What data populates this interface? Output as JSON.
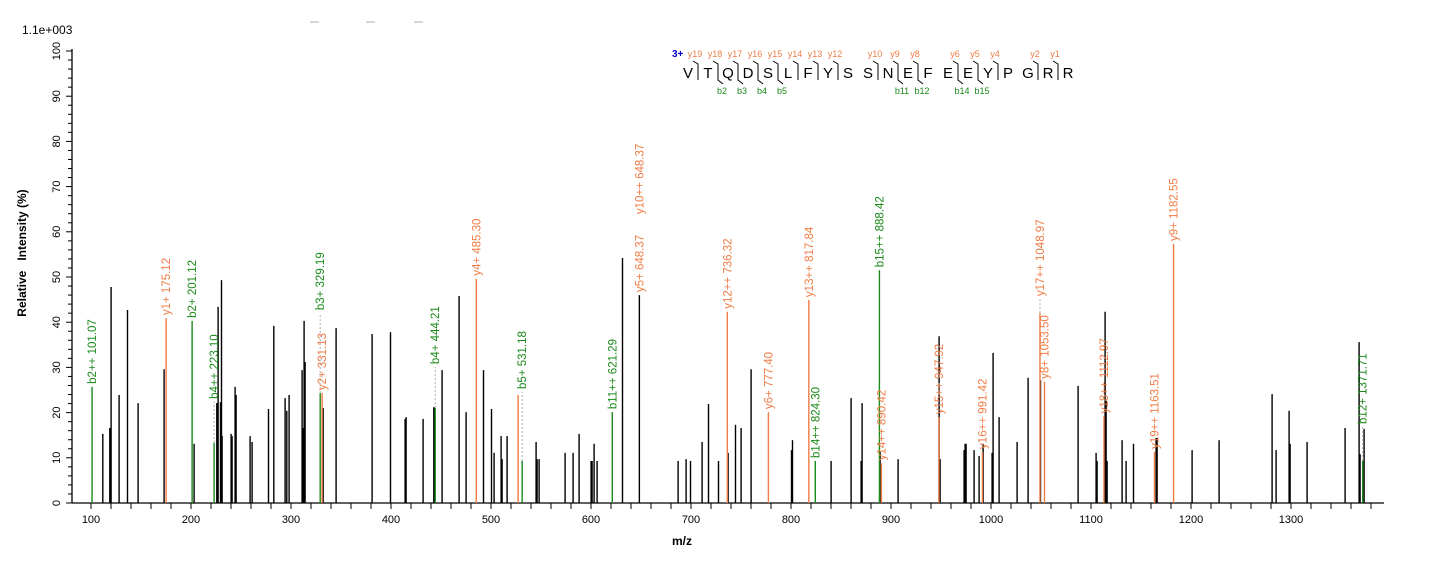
{
  "chart_data": {
    "type": "bar",
    "title": "",
    "scale_label": "1.1e+003",
    "xlabel": "m/z",
    "ylabel": "Relative   Intensity (%)",
    "xlim": [
      81,
      1393
    ],
    "ylim": [
      0,
      100
    ],
    "x_ticks": [
      100,
      200,
      300,
      400,
      500,
      600,
      700,
      800,
      900,
      1000,
      1100,
      1200,
      1300
    ],
    "y_ticks": [
      0,
      10,
      20,
      30,
      40,
      50,
      60,
      70,
      80,
      90,
      100
    ],
    "grid": false,
    "colors": {
      "unassigned": "#000000",
      "b_ion": "#1a8a1a",
      "y_ion": "#f07c45",
      "charge": "#0000cc",
      "connector": "#aaaaaa"
    },
    "peptide": {
      "charge": "3+",
      "sequence": [
        "V",
        "T",
        "Q",
        "D",
        "S",
        "L",
        "F",
        "Y",
        "S",
        "S",
        "N",
        "E",
        "F",
        "E",
        "E",
        "Y",
        "P",
        "G",
        "R",
        "R"
      ],
      "y_cleavages": [
        {
          "after": 1,
          "label": "y19"
        },
        {
          "after": 2,
          "label": "y18"
        },
        {
          "after": 3,
          "label": "y17"
        },
        {
          "after": 4,
          "label": "y16"
        },
        {
          "after": 5,
          "label": "y15"
        },
        {
          "after": 6,
          "label": "y14"
        },
        {
          "after": 7,
          "label": "y13"
        },
        {
          "after": 8,
          "label": "y12"
        },
        {
          "after": 10,
          "label": "y10"
        },
        {
          "after": 11,
          "label": "y9"
        },
        {
          "after": 12,
          "label": "y8"
        },
        {
          "after": 14,
          "label": "y6"
        },
        {
          "after": 15,
          "label": "y5"
        },
        {
          "after": 16,
          "label": "y4"
        },
        {
          "after": 18,
          "label": "y2"
        },
        {
          "after": 19,
          "label": "y1"
        }
      ],
      "b_cleavages": [
        {
          "after": 2,
          "label": "b2"
        },
        {
          "after": 3,
          "label": "b3"
        },
        {
          "after": 4,
          "label": "b4"
        },
        {
          "after": 5,
          "label": "b5"
        },
        {
          "after": 11,
          "label": "b11"
        },
        {
          "after": 12,
          "label": "b12"
        },
        {
          "after": 14,
          "label": "b14"
        },
        {
          "after": 15,
          "label": "b15"
        }
      ]
    },
    "peaks": [
      [
        111.8,
        15.3
      ],
      [
        118.8,
        16.6
      ],
      [
        120.1,
        47.8
      ],
      [
        128.1,
        23.9
      ],
      [
        136.5,
        42.7
      ],
      [
        147.1,
        22.1
      ],
      [
        173.1,
        29.6
      ],
      [
        203.1,
        13.1
      ],
      [
        225.8,
        22.1
      ],
      [
        227.1,
        43.4
      ],
      [
        229.5,
        22.3
      ],
      [
        230.5,
        49.3
      ],
      [
        231.1,
        14.8
      ],
      [
        240.1,
        15.3
      ],
      [
        241.1,
        14.8
      ],
      [
        244.1,
        25.7
      ],
      [
        245.1,
        23.9
      ],
      [
        259.1,
        14.8
      ],
      [
        261.1,
        13.5
      ],
      [
        277.5,
        20.8
      ],
      [
        282.8,
        39.2
      ],
      [
        294.1,
        23.2
      ],
      [
        295.8,
        20.4
      ],
      [
        298.1,
        23.9
      ],
      [
        311.1,
        29.4
      ],
      [
        312.1,
        16.6
      ],
      [
        313.1,
        40.3
      ],
      [
        314.1,
        31.2
      ],
      [
        332.1,
        21.0
      ],
      [
        345.1,
        38.7
      ],
      [
        381.1,
        37.4
      ],
      [
        399.5,
        37.8
      ],
      [
        414.1,
        18.6
      ],
      [
        415.1,
        19.0
      ],
      [
        432.1,
        18.6
      ],
      [
        442.8,
        21.2
      ],
      [
        451.1,
        29.4
      ],
      [
        468.1,
        45.8
      ],
      [
        475.1,
        20.1
      ],
      [
        492.5,
        29.4
      ],
      [
        500.5,
        20.8
      ],
      [
        503.1,
        11.1
      ],
      [
        510.1,
        14.8
      ],
      [
        511.1,
        9.7
      ],
      [
        516.1,
        14.8
      ],
      [
        545.1,
        13.5
      ],
      [
        546.1,
        9.7
      ],
      [
        548.1,
        9.7
      ],
      [
        574.1,
        11.1
      ],
      [
        582.1,
        11.1
      ],
      [
        588.1,
        15.3
      ],
      [
        600.1,
        9.3
      ],
      [
        601.1,
        9.3
      ],
      [
        603.1,
        13.1
      ],
      [
        606.1,
        9.3
      ],
      [
        631.5,
        54.2
      ],
      [
        687.1,
        9.3
      ],
      [
        695.1,
        9.7
      ],
      [
        699.5,
        9.3
      ],
      [
        711.1,
        13.5
      ],
      [
        717.5,
        21.9
      ],
      [
        727.5,
        9.3
      ],
      [
        737.1,
        11.1
      ],
      [
        744.5,
        17.3
      ],
      [
        750.1,
        16.6
      ],
      [
        760.1,
        29.6
      ],
      [
        800.5,
        11.7
      ],
      [
        801.5,
        13.9
      ],
      [
        840.1,
        9.3
      ],
      [
        860.1,
        23.2
      ],
      [
        870.1,
        9.3
      ],
      [
        871.1,
        22.1
      ],
      [
        889.1,
        11.3
      ],
      [
        907.1,
        9.7
      ],
      [
        948.1,
        36.9
      ],
      [
        949.1,
        9.7
      ],
      [
        973.1,
        11.7
      ],
      [
        974.1,
        13.1
      ],
      [
        975.1,
        13.1
      ],
      [
        983.1,
        11.7
      ],
      [
        988.1,
        10.4
      ],
      [
        992.1,
        13.1
      ],
      [
        1001.1,
        11.1
      ],
      [
        1002.1,
        33.2
      ],
      [
        1008.1,
        19.0
      ],
      [
        1026.1,
        13.5
      ],
      [
        1037.1,
        27.7
      ],
      [
        1049.5,
        27.2
      ],
      [
        1087.1,
        25.9
      ],
      [
        1105.1,
        11.1
      ],
      [
        1106.1,
        9.3
      ],
      [
        1114.1,
        42.3
      ],
      [
        1115.1,
        22.6
      ],
      [
        1116.1,
        9.3
      ],
      [
        1131.1,
        13.9
      ],
      [
        1135.1,
        9.3
      ],
      [
        1142.5,
        13.1
      ],
      [
        1165.1,
        14.4
      ],
      [
        1166.1,
        14.4
      ],
      [
        1201.1,
        11.7
      ],
      [
        1228.1,
        13.9
      ],
      [
        1281.1,
        24.1
      ],
      [
        1285.1,
        11.7
      ],
      [
        1298.1,
        20.4
      ],
      [
        1299.1,
        13.1
      ],
      [
        1316.1,
        13.5
      ],
      [
        1354.1,
        16.6
      ],
      [
        1368.1,
        35.6
      ],
      [
        1369.1,
        10.8
      ],
      [
        1373.1,
        16.4
      ]
    ],
    "annotations": [
      {
        "label": "b2++ 101.07",
        "mz": 101.07,
        "intensity": 25.7,
        "ion": "b"
      },
      {
        "label": "y1+ 175.12",
        "mz": 175.12,
        "intensity": 40.9,
        "ion": "y"
      },
      {
        "label": "b2+ 201.12",
        "mz": 201.12,
        "intensity": 40.3,
        "ion": "b"
      },
      {
        "label": "b4++ 223.10",
        "mz": 223.1,
        "intensity": 13.3,
        "ion": "b"
      },
      {
        "label": "b3+ 329.19",
        "mz": 329.19,
        "intensity": 24.3,
        "ion": "b"
      },
      {
        "label": "y2+ 331.13",
        "mz": 331.13,
        "intensity": 24.3,
        "ion": "y"
      },
      {
        "label": "b4+ 444.21",
        "mz": 444.21,
        "intensity": 21.0,
        "ion": "b"
      },
      {
        "label": "y4+ 485.30",
        "mz": 485.3,
        "intensity": 49.6,
        "ion": "y"
      },
      {
        "label": "",
        "mz": 527.1,
        "intensity": 23.9,
        "ion": "y"
      },
      {
        "label": "b5+ 531.18",
        "mz": 531.18,
        "intensity": 9.3,
        "ion": "b"
      },
      {
        "label": "b11++ 621.29",
        "mz": 621.29,
        "intensity": 20.1,
        "ion": "b"
      },
      {
        "label": "y5+ 648.37",
        "mz": 648.37,
        "intensity": 46.0,
        "ion": "y",
        "line": "unassigned"
      },
      {
        "label": "y10++ 648.37",
        "mz": 648.37,
        "intensity": 46.0,
        "ion": "y",
        "line": "none"
      },
      {
        "label": "y12++ 736.32",
        "mz": 736.32,
        "intensity": 42.3,
        "ion": "y"
      },
      {
        "label": "y6+ 777.40",
        "mz": 777.4,
        "intensity": 20.1,
        "ion": "y"
      },
      {
        "label": "y13++ 817.84",
        "mz": 817.84,
        "intensity": 44.9,
        "ion": "y"
      },
      {
        "label": "b14++ 824.30",
        "mz": 824.3,
        "intensity": 9.3,
        "ion": "b"
      },
      {
        "label": "b15++ 888.42",
        "mz": 888.42,
        "intensity": 51.5,
        "ion": "b"
      },
      {
        "label": "y14++ 890.42",
        "mz": 890.42,
        "intensity": 8.8,
        "ion": "y"
      },
      {
        "label": "y15++ 947.92",
        "mz": 947.92,
        "intensity": 19.0,
        "ion": "y"
      },
      {
        "label": "y16++ 991.42",
        "mz": 991.42,
        "intensity": 11.3,
        "ion": "y"
      },
      {
        "label": "y17++ 1048.97",
        "mz": 1048.97,
        "intensity": 42.0,
        "ion": "y"
      },
      {
        "label": "y8+ 1053.50",
        "mz": 1053.5,
        "intensity": 26.8,
        "ion": "y"
      },
      {
        "label": "y18++ 1112.97",
        "mz": 1112.97,
        "intensity": 19.2,
        "ion": "y"
      },
      {
        "label": "y19++ 1163.51",
        "mz": 1163.51,
        "intensity": 11.3,
        "ion": "y"
      },
      {
        "label": "y9+ 1182.55",
        "mz": 1182.55,
        "intensity": 57.3,
        "ion": "y"
      },
      {
        "label": "b12+ 1371.71",
        "mz": 1371.71,
        "intensity": 9.3,
        "ion": "b"
      }
    ]
  }
}
